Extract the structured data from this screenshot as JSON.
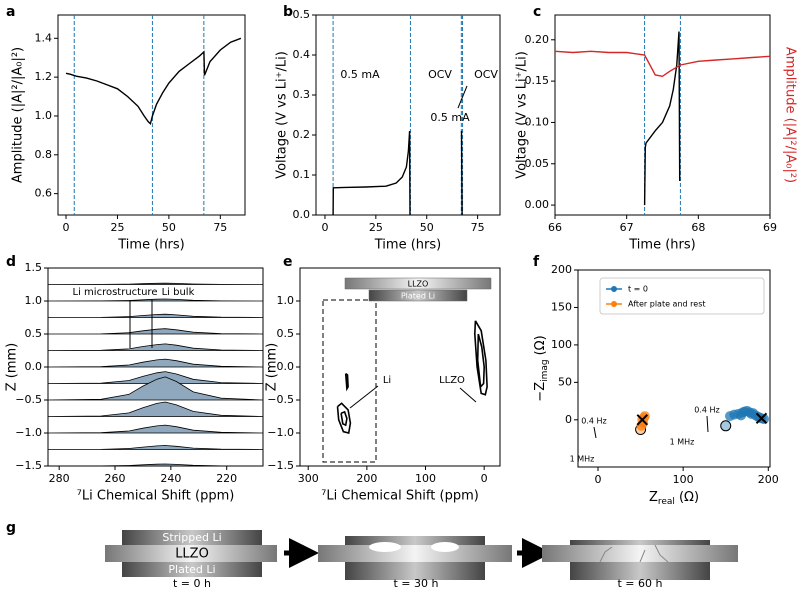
{
  "chart_data": [
    {
      "type": "line",
      "panel": "a",
      "xlabel": "Time (hrs)",
      "ylabel": "Amplitude (|A|²/|A₀|²)",
      "x": [
        0,
        2,
        5,
        10,
        15,
        20,
        25,
        30,
        35,
        38,
        40,
        41,
        42,
        44,
        47,
        50,
        55,
        60,
        65,
        67,
        67.3,
        70,
        75,
        80,
        85
      ],
      "series": [
        {
          "color": "#000000",
          "values": [
            1.22,
            1.215,
            1.205,
            1.195,
            1.18,
            1.16,
            1.14,
            1.1,
            1.05,
            1.0,
            0.97,
            0.96,
            1.0,
            1.06,
            1.12,
            1.17,
            1.23,
            1.27,
            1.31,
            1.33,
            1.21,
            1.28,
            1.34,
            1.38,
            1.4
          ]
        }
      ],
      "xlim": [
        -3.9,
        87
      ],
      "ylim": [
        0.49,
        1.52
      ],
      "xticks": [
        0,
        25,
        50,
        75
      ],
      "yticks": [
        0.6,
        0.8,
        {
          "value": 1,
          "label": "1.0"
        },
        1.2,
        1.4
      ],
      "vlines": [
        4,
        42,
        67
      ],
      "vline_color": "#1f77b4"
    },
    {
      "type": "line",
      "panel": "b",
      "xlabel": "Time (hrs)",
      "ylabel": "Voltage (V vs Li⁺/Li)",
      "x": [
        4,
        4.1,
        10,
        20,
        30,
        35,
        38,
        40,
        41,
        41.6,
        41.8,
        67.0,
        67.1,
        67.4
      ],
      "series": [
        {
          "color": "#000000",
          "values": [
            0,
            0.068,
            0.069,
            0.07,
            0.072,
            0.08,
            0.095,
            0.12,
            0.16,
            0.21,
            0.0,
            null,
            0.21,
            0.0
          ]
        }
      ],
      "xlim": [
        -4.4,
        86
      ],
      "ylim": [
        0,
        0.5
      ],
      "xticks": [
        0,
        25,
        50,
        75
      ],
      "yticks": [
        {
          "value": 0,
          "label": "0.0"
        },
        0.1,
        0.2,
        0.3,
        0.4,
        0.5
      ],
      "annotations": [
        "0.5 mA",
        "OCV",
        "OCV",
        "0.5 mA"
      ],
      "vlines": [
        4,
        42,
        67,
        67.6
      ],
      "vline_color": "#1f77b4"
    },
    {
      "type": "line",
      "panel": "c",
      "xlabel": "Time (hrs)",
      "ylabel": "Voltage (V vs Li⁺/Li)",
      "y2label": "Amplitude (|A|²/|A₀|²)",
      "series": [
        {
          "color": "#000000",
          "x": [
            67.25,
            67.26,
            67.27,
            67.4,
            67.5,
            67.6,
            67.65,
            67.7,
            67.73,
            67.74,
            67.75
          ],
          "values": [
            0,
            0.07,
            0.075,
            0.09,
            0.1,
            0.12,
            0.14,
            0.17,
            0.21,
            0.03,
            0.03
          ]
        },
        {
          "color": "#d62728",
          "axis": "y2",
          "x": [
            66,
            66.25,
            66.5,
            66.75,
            67,
            67.25,
            67.4,
            67.5,
            67.6,
            67.75,
            68,
            68.25,
            68.5,
            68.75,
            69
          ],
          "values": [
            1.31,
            1.3,
            1.31,
            1.3,
            1.3,
            1.28,
            1.12,
            1.11,
            1.15,
            1.2,
            1.23,
            1.24,
            1.25,
            1.26,
            1.27
          ]
        }
      ],
      "xlim": [
        66,
        69
      ],
      "ylim": [
        -0.012,
        0.23
      ],
      "y2lim": [
        0,
        1.6
      ],
      "xticks": [
        66,
        67,
        68,
        69
      ],
      "yticks": [
        {
          "value": 0,
          "label": "0.00"
        },
        {
          "value": 0.05,
          "label": "0.05"
        },
        {
          "value": 0.1,
          "label": "0.10"
        },
        {
          "value": 0.15,
          "label": "0.15"
        },
        {
          "value": 0.2,
          "label": "0.20"
        }
      ],
      "vlines": [
        67.25,
        67.75
      ],
      "vline_color": "#1f77b4"
    },
    {
      "type": "spectra",
      "panel": "d",
      "xlabel": "⁷Li Chemical Shift (ppm)",
      "ylabel": "Z (mm)",
      "fill": "#8fa8bd",
      "x": [
        284,
        265,
        255,
        250,
        245,
        242,
        238,
        232,
        222,
        207
      ],
      "series": [
        {
          "values": [
            1.25,
            1.251,
            1.255,
            1.262,
            1.268,
            1.27,
            1.266,
            1.257,
            1.252,
            1.25
          ]
        },
        {
          "values": [
            1.0,
            1.001,
            1.008,
            1.018,
            1.027,
            1.03,
            1.024,
            1.011,
            1.002,
            1.0
          ]
        },
        {
          "values": [
            0.75,
            0.752,
            0.763,
            0.78,
            0.795,
            0.8,
            0.79,
            0.768,
            0.754,
            0.75
          ]
        },
        {
          "values": [
            0.5,
            0.502,
            0.52,
            0.548,
            0.572,
            0.58,
            0.564,
            0.528,
            0.506,
            0.5
          ]
        },
        {
          "values": [
            0.25,
            0.253,
            0.275,
            0.31,
            0.34,
            0.35,
            0.33,
            0.285,
            0.258,
            0.25
          ]
        },
        {
          "values": [
            0,
            0.004,
            0.03,
            0.072,
            0.108,
            0.12,
            0.096,
            0.042,
            0.01,
            0
          ]
        },
        {
          "values": [
            -0.25,
            -0.245,
            -0.205,
            -0.142,
            -0.088,
            -0.07,
            -0.106,
            -0.187,
            -0.236,
            -0.25
          ]
        },
        {
          "values": [
            -0.5,
            -0.49,
            -0.413,
            -0.29,
            -0.185,
            -0.15,
            -0.22,
            -0.378,
            -0.472,
            -0.5
          ]
        },
        {
          "values": [
            -0.75,
            -0.743,
            -0.695,
            -0.618,
            -0.552,
            -0.53,
            -0.574,
            -0.673,
            -0.732,
            -0.75
          ]
        },
        {
          "values": [
            -1.0,
            -0.996,
            -0.97,
            -0.928,
            -0.892,
            -0.88,
            -0.904,
            -0.958,
            -0.99,
            -1.0
          ]
        },
        {
          "values": [
            -1.25,
            -1.248,
            -1.235,
            -1.214,
            -1.196,
            -1.19,
            -1.202,
            -1.229,
            -1.245,
            -1.25
          ]
        },
        {
          "values": [
            -1.5,
            -1.499,
            -1.493,
            -1.482,
            -1.473,
            -1.47,
            -1.476,
            -1.49,
            -1.498,
            -1.5
          ]
        }
      ],
      "xlim": [
        284,
        207
      ],
      "ylim": [
        -1.5,
        1.5
      ],
      "xticks": [
        280,
        260,
        240,
        220
      ],
      "yticks": [
        {
          "value": -1.5,
          "label": "−1.5"
        },
        {
          "value": -1,
          "label": "−1.0"
        },
        {
          "value": -0.5,
          "label": "−0.5"
        },
        {
          "value": 0,
          "label": "0.0"
        },
        {
          "value": 0.5,
          "label": "0.5"
        },
        {
          "value": 1,
          "label": "1.0"
        },
        {
          "value": 1.5,
          "label": "1.5"
        }
      ],
      "annotations": [
        "Li microstructure",
        "Li bulk"
      ]
    },
    {
      "type": "contour",
      "panel": "e",
      "xlabel": "⁷Li Chemical Shift (ppm)",
      "ylabel": "Z (mm)",
      "contours": [
        {
          "x": [
            236,
            233,
            232,
            234,
            236
          ],
          "y": [
            -0.1,
            -0.12,
            -0.3,
            -0.33,
            -0.1
          ]
        },
        {
          "x": [
            250,
            243,
            232,
            228,
            231,
            240,
            248,
            250
          ],
          "y": [
            -0.6,
            -0.55,
            -0.65,
            -0.85,
            -1.0,
            -0.98,
            -0.8,
            -0.6
          ]
        },
        {
          "x": [
            244,
            238,
            234,
            236,
            241,
            244
          ],
          "y": [
            -0.7,
            -0.68,
            -0.78,
            -0.88,
            -0.86,
            -0.7
          ]
        },
        {
          "x": [
            15,
            5,
            -3,
            -5,
            -2,
            5,
            12,
            16,
            15
          ],
          "y": [
            0.7,
            0.55,
            0.1,
            -0.3,
            -0.42,
            -0.4,
            0,
            0.5,
            0.7
          ]
        },
        {
          "x": [
            10,
            4,
            0,
            1,
            6,
            11,
            10
          ],
          "y": [
            0.5,
            0.3,
            0,
            -0.25,
            -0.3,
            0.1,
            0.5
          ]
        }
      ],
      "xlim": [
        314,
        -27
      ],
      "ylim": [
        -1.5,
        1.5
      ],
      "xticks": [
        300,
        200,
        100,
        0
      ],
      "yticks": [
        {
          "value": -1.5,
          "label": "−1.5"
        },
        {
          "value": -1,
          "label": "−1.0"
        },
        {
          "value": -0.5,
          "label": "−0.5"
        },
        {
          "value": 0,
          "label": "0.0"
        },
        {
          "value": 0.5,
          "label": "0.5"
        },
        {
          "value": 1,
          "label": "1.0"
        }
      ],
      "annotations": [
        "Li",
        "LLZO"
      ],
      "bars": [
        "LLZO",
        "Plated Li"
      ]
    },
    {
      "type": "scatter",
      "panel": "f",
      "xlabel": {
        "text": "Z",
        "sub": "real",
        "unit": "(Ω)"
      },
      "ylabel": {
        "text": "−Z",
        "sub": "imag",
        "unit": "(Ω)"
      },
      "series": [
        {
          "name": "t = 0",
          "color": "#1f77b4",
          "x": [
            150,
            155,
            160,
            165,
            168,
            170,
            172,
            175,
            178,
            180,
            182,
            185,
            188,
            190,
            195,
            192
          ],
          "values": [
            -8,
            5,
            7,
            8,
            6,
            10,
            11,
            12,
            10,
            8,
            9,
            6,
            4,
            3,
            1,
            2
          ]
        },
        {
          "name": "After plate and rest",
          "color": "#ff7f0e",
          "x": [
            50,
            51,
            53,
            54,
            55,
            52
          ],
          "values": [
            -13,
            -8,
            -4,
            3,
            5,
            0
          ]
        }
      ],
      "xlim": [
        -23.5,
        202
      ],
      "ylim": [
        -63,
        200
      ],
      "xticks": [
        0,
        100,
        200
      ],
      "yticks": [
        0,
        50,
        100,
        150,
        200
      ],
      "legend": "upper right",
      "annotations": [
        "0.4 Hz",
        "1 MHz",
        "0.4 Hz",
        "1 MHz"
      ]
    }
  ],
  "schematic": {
    "panel": "g",
    "stripped": "Stripped Li",
    "llzo": "LLZO",
    "plated": "Plated Li",
    "times": [
      "t = 0 h",
      "t = 30 h",
      "t = 60 h"
    ]
  }
}
